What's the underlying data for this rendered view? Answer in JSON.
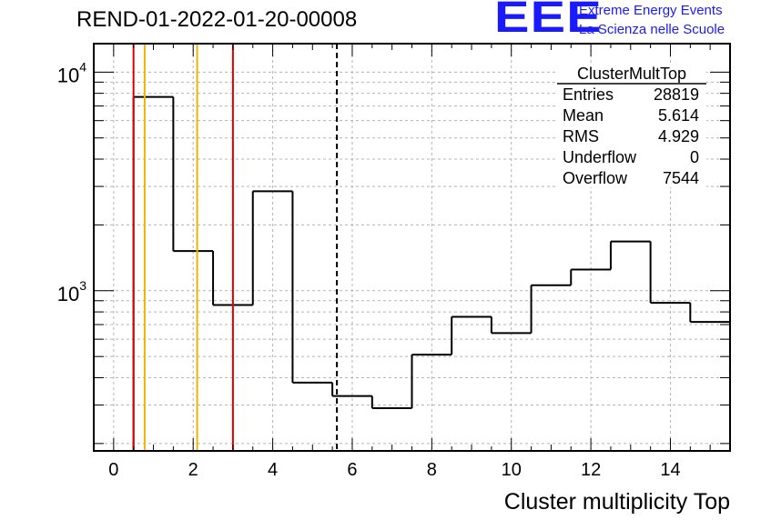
{
  "header": {
    "title": "REND-01-2022-01-20-00008",
    "logo_mark": "EEE",
    "logo_line1": "Extreme Energy Events",
    "logo_line2": "La Scienza nelle Scuole"
  },
  "stats": {
    "name": "ClusterMultTop",
    "rows": [
      {
        "label": "Entries",
        "value": "28819"
      },
      {
        "label": "Mean",
        "value": "5.614"
      },
      {
        "label": "RMS",
        "value": "4.929"
      },
      {
        "label": "Underflow",
        "value": "0"
      },
      {
        "label": "Overflow",
        "value": "7544"
      }
    ]
  },
  "chart_data": {
    "type": "histogram",
    "title": "REND-01-2022-01-20-00008",
    "xlabel": "Cluster multiplicity Top",
    "ylabel": "",
    "log_y": true,
    "xlim": [
      -0.5,
      15.5
    ],
    "ylim": [
      185,
      13500
    ],
    "grid": true,
    "bin_edges": [
      0.5,
      1.5,
      2.5,
      3.5,
      4.5,
      5.5,
      6.5,
      7.5,
      8.5,
      9.5,
      10.5,
      11.5,
      12.5,
      13.5,
      14.5,
      15.5
    ],
    "bin_values": [
      7700,
      1520,
      860,
      2850,
      380,
      330,
      290,
      510,
      760,
      640,
      1060,
      1250,
      1680,
      880,
      720
    ],
    "x_ticks": [
      "0",
      "2",
      "4",
      "6",
      "8",
      "10",
      "12",
      "14"
    ],
    "y_tick_labels": [
      {
        "base": "10",
        "exp": "3",
        "value": 1000
      },
      {
        "base": "10",
        "exp": "4",
        "value": 10000
      }
    ],
    "vertical_lines": [
      {
        "x": 0.5,
        "color": "#e00000",
        "style": "solid"
      },
      {
        "x": 3.0,
        "color": "#e00000",
        "style": "solid"
      },
      {
        "x": 0.78,
        "color": "#f0b400",
        "style": "solid"
      },
      {
        "x": 2.1,
        "color": "#f0b400",
        "style": "solid"
      },
      {
        "x": 5.614,
        "color": "#000000",
        "style": "dashed"
      }
    ],
    "colors": {
      "histogram": "#000000",
      "grid": "#b4b4b4"
    }
  }
}
